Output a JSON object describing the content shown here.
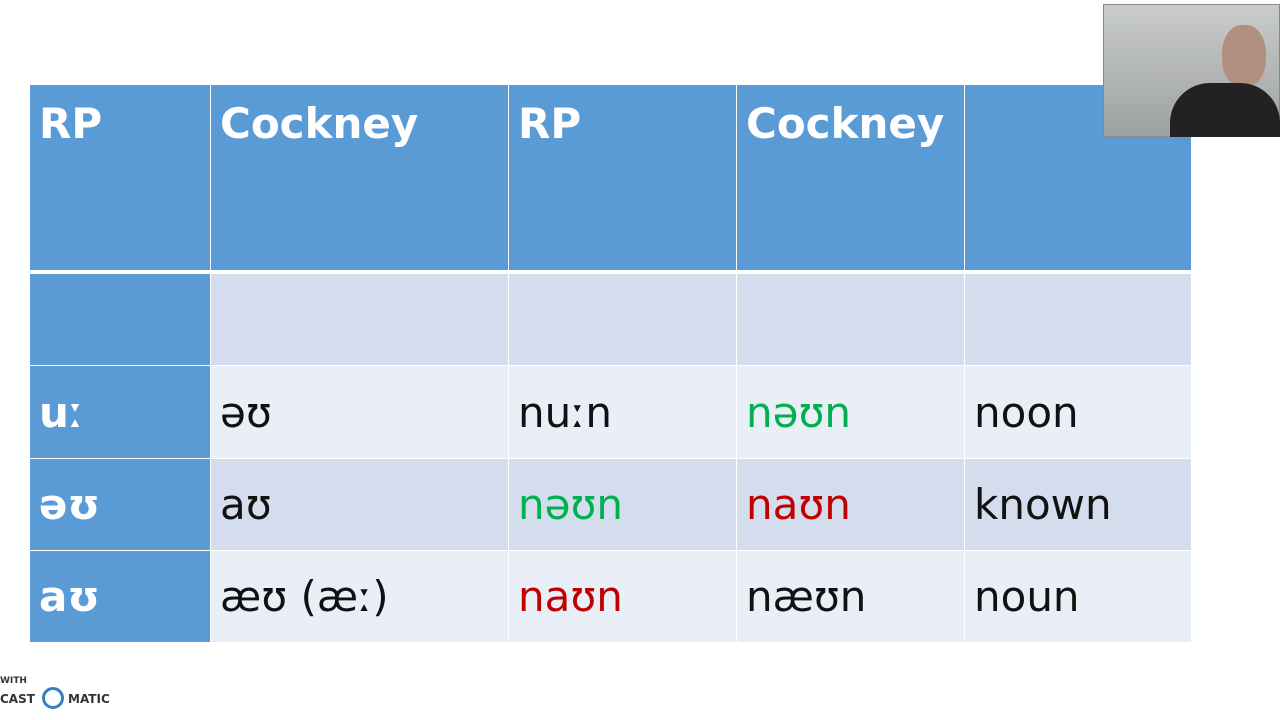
{
  "table": {
    "header": [
      "RP",
      "Cockney",
      "RP",
      "Cockney"
    ],
    "rows": [
      [
        "uː",
        "əʊ",
        "nuːn",
        "nəʊn",
        "noon"
      ],
      [
        "əʊ",
        "aʊ",
        "nəʊn",
        "naʊn",
        "known"
      ],
      [
        "aʊ",
        "æʊ (æː)",
        "naʊn",
        "næʊn",
        "noun"
      ]
    ]
  },
  "watermark": {
    "top": "WITH",
    "left": "CAST",
    "right": "MATIC"
  }
}
